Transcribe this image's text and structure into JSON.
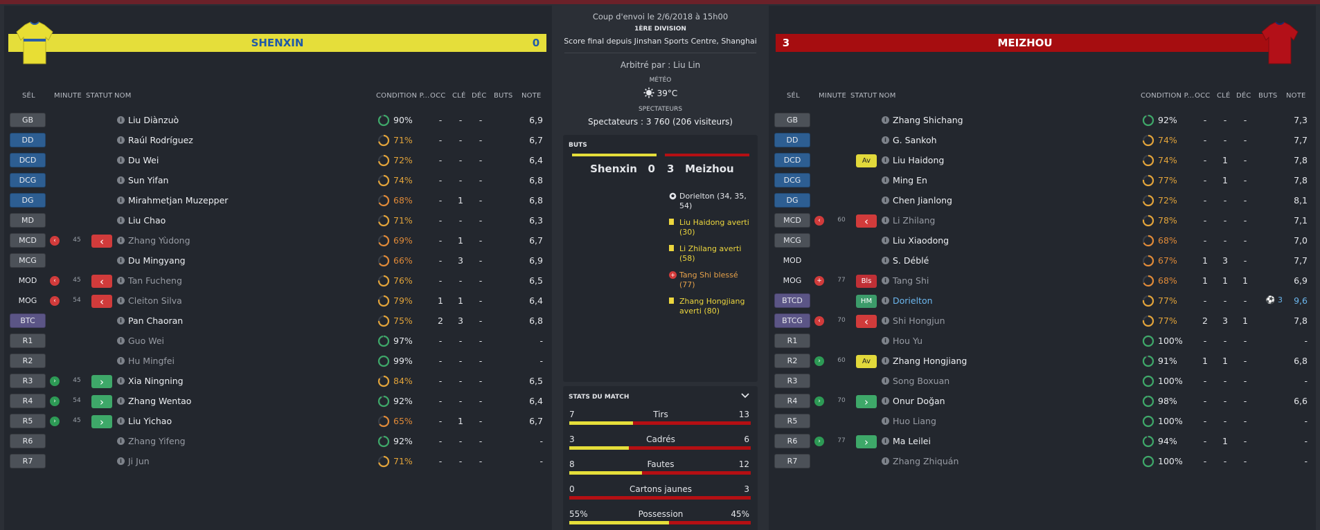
{
  "home": {
    "name": "SHENXIN",
    "score": "0",
    "shirt_colors": {
      "body": "#e8de34",
      "stripe": "#2a5ea8"
    },
    "headers": {
      "sel": "SÉL",
      "minute": "MINUTE",
      "statut": "STATUT",
      "nom": "NOM",
      "condition": "CONDITION P...",
      "occ": "OCC",
      "cle": "CLÉ",
      "dec": "DÉC",
      "buts": "BUTS",
      "note": "NOTE"
    },
    "players": [
      {
        "pos": "GB",
        "pos_style": "gk",
        "sub": "",
        "minute": "",
        "statut": "",
        "name": "Liu Diànzuò",
        "name_style": "",
        "cond": "90%",
        "cond_level": 0.9,
        "occ": "-",
        "cle": "-",
        "dec": "-",
        "buts": "",
        "note": "6,9"
      },
      {
        "pos": "DD",
        "pos_style": "def",
        "sub": "",
        "minute": "",
        "statut": "",
        "name": "Raúl Rodríguez",
        "name_style": "",
        "cond": "71%",
        "cond_level": 0.71,
        "occ": "-",
        "cle": "-",
        "dec": "-",
        "buts": "",
        "note": "6,7"
      },
      {
        "pos": "DCD",
        "pos_style": "def",
        "sub": "",
        "minute": "",
        "statut": "",
        "name": "Du Wei",
        "name_style": "",
        "cond": "72%",
        "cond_level": 0.72,
        "occ": "-",
        "cle": "-",
        "dec": "-",
        "buts": "",
        "note": "6,4"
      },
      {
        "pos": "DCG",
        "pos_style": "def",
        "sub": "",
        "minute": "",
        "statut": "",
        "name": "Sun Yifan",
        "name_style": "",
        "cond": "74%",
        "cond_level": 0.74,
        "occ": "-",
        "cle": "-",
        "dec": "-",
        "buts": "",
        "note": "6,8"
      },
      {
        "pos": "DG",
        "pos_style": "def",
        "sub": "",
        "minute": "",
        "statut": "",
        "name": "Mirahmetjan Muzepper",
        "name_style": "",
        "cond": "68%",
        "cond_level": 0.68,
        "occ": "-",
        "cle": "1",
        "dec": "-",
        "buts": "",
        "note": "6,8"
      },
      {
        "pos": "MD",
        "pos_style": "mid",
        "sub": "",
        "minute": "",
        "statut": "",
        "name": "Liu Chao",
        "name_style": "",
        "cond": "71%",
        "cond_level": 0.71,
        "occ": "-",
        "cle": "-",
        "dec": "-",
        "buts": "",
        "note": "6,3"
      },
      {
        "pos": "MCD",
        "pos_style": "mid",
        "sub": "out",
        "minute": "45",
        "statut": "out",
        "name": "Zhang Yùdong",
        "name_style": "dim",
        "cond": "69%",
        "cond_level": 0.69,
        "occ": "-",
        "cle": "1",
        "dec": "-",
        "buts": "",
        "note": "6,7"
      },
      {
        "pos": "MCG",
        "pos_style": "mid",
        "sub": "",
        "minute": "",
        "statut": "",
        "name": "Du Mingyang",
        "name_style": "",
        "cond": "66%",
        "cond_level": 0.66,
        "occ": "-",
        "cle": "3",
        "dec": "-",
        "buts": "",
        "note": "6,9"
      },
      {
        "pos": "MOD",
        "pos_style": "plain",
        "sub": "out",
        "minute": "45",
        "statut": "out",
        "name": "Tan Fucheng",
        "name_style": "dim",
        "cond": "76%",
        "cond_level": 0.76,
        "occ": "-",
        "cle": "-",
        "dec": "-",
        "buts": "",
        "note": "6,5"
      },
      {
        "pos": "MOG",
        "pos_style": "plain",
        "sub": "out",
        "minute": "54",
        "statut": "out",
        "name": "Cleiton Silva",
        "name_style": "dim",
        "cond": "79%",
        "cond_level": 0.79,
        "occ": "1",
        "cle": "1",
        "dec": "-",
        "buts": "",
        "note": "6,4"
      },
      {
        "pos": "BTC",
        "pos_style": "att",
        "sub": "",
        "minute": "",
        "statut": "",
        "name": "Pan Chaoran",
        "name_style": "",
        "cond": "75%",
        "cond_level": 0.75,
        "occ": "2",
        "cle": "3",
        "dec": "-",
        "buts": "",
        "note": "6,8"
      },
      {
        "pos": "R1",
        "pos_style": "res",
        "sub": "",
        "minute": "",
        "statut": "",
        "name": "Guo Wei",
        "name_style": "dim",
        "cond": "97%",
        "cond_level": 0.97,
        "occ": "-",
        "cle": "-",
        "dec": "-",
        "buts": "",
        "note": "-"
      },
      {
        "pos": "R2",
        "pos_style": "res",
        "sub": "",
        "minute": "",
        "statut": "",
        "name": "Hu Mingfei",
        "name_style": "dim",
        "cond": "99%",
        "cond_level": 0.99,
        "occ": "-",
        "cle": "-",
        "dec": "-",
        "buts": "",
        "note": "-"
      },
      {
        "pos": "R3",
        "pos_style": "res",
        "sub": "in",
        "minute": "45",
        "statut": "in",
        "name": "Xia Ningning",
        "name_style": "",
        "cond": "84%",
        "cond_level": 0.84,
        "occ": "-",
        "cle": "-",
        "dec": "-",
        "buts": "",
        "note": "6,5"
      },
      {
        "pos": "R4",
        "pos_style": "res",
        "sub": "in",
        "minute": "54",
        "statut": "in",
        "name": "Zhang Wentao",
        "name_style": "",
        "cond": "92%",
        "cond_level": 0.92,
        "occ": "-",
        "cle": "-",
        "dec": "-",
        "buts": "",
        "note": "6,4"
      },
      {
        "pos": "R5",
        "pos_style": "res",
        "sub": "in",
        "minute": "45",
        "statut": "in",
        "name": "Liu Yichao",
        "name_style": "",
        "cond": "65%",
        "cond_level": 0.65,
        "occ": "-",
        "cle": "1",
        "dec": "-",
        "buts": "",
        "note": "6,7"
      },
      {
        "pos": "R6",
        "pos_style": "res",
        "sub": "",
        "minute": "",
        "statut": "",
        "name": "Zhang Yifeng",
        "name_style": "dim",
        "cond": "92%",
        "cond_level": 0.92,
        "occ": "-",
        "cle": "-",
        "dec": "-",
        "buts": "",
        "note": "-"
      },
      {
        "pos": "R7",
        "pos_style": "res",
        "sub": "",
        "minute": "",
        "statut": "",
        "name": "Ji Jun",
        "name_style": "dim",
        "cond": "71%",
        "cond_level": 0.71,
        "occ": "-",
        "cle": "-",
        "dec": "-",
        "buts": "",
        "note": "-"
      }
    ]
  },
  "away": {
    "name": "MEIZHOU",
    "score": "3",
    "shirt_colors": {
      "body": "#b31018",
      "stripe": "#1c2a6a"
    },
    "headers": {
      "sel": "SÉL",
      "minute": "MINUTE",
      "statut": "STATUT",
      "nom": "NOM",
      "condition": "CONDITION P...",
      "occ": "OCC",
      "cle": "CLÉ",
      "dec": "DÉC",
      "buts": "BUTS",
      "note": "NOTE"
    },
    "players": [
      {
        "pos": "GB",
        "pos_style": "gk",
        "sub": "",
        "minute": "",
        "statut": "",
        "name": "Zhang Shichang",
        "name_style": "",
        "cond": "92%",
        "cond_level": 0.92,
        "occ": "-",
        "cle": "-",
        "dec": "-",
        "buts": "",
        "note": "7,3"
      },
      {
        "pos": "DD",
        "pos_style": "def",
        "sub": "",
        "minute": "",
        "statut": "",
        "name": "G. Sankoh",
        "name_style": "",
        "cond": "74%",
        "cond_level": 0.74,
        "occ": "-",
        "cle": "-",
        "dec": "-",
        "buts": "",
        "note": "7,7"
      },
      {
        "pos": "DCD",
        "pos_style": "def",
        "sub": "",
        "minute": "",
        "statut": "Av",
        "name": "Liu Haidong",
        "name_style": "",
        "cond": "74%",
        "cond_level": 0.74,
        "occ": "-",
        "cle": "1",
        "dec": "-",
        "buts": "",
        "note": "7,8"
      },
      {
        "pos": "DCG",
        "pos_style": "def",
        "sub": "",
        "minute": "",
        "statut": "",
        "name": "Ming En",
        "name_style": "",
        "cond": "77%",
        "cond_level": 0.77,
        "occ": "-",
        "cle": "1",
        "dec": "-",
        "buts": "",
        "note": "7,8"
      },
      {
        "pos": "DG",
        "pos_style": "def",
        "sub": "",
        "minute": "",
        "statut": "",
        "name": "Chen Jianlong",
        "name_style": "",
        "cond": "72%",
        "cond_level": 0.72,
        "occ": "-",
        "cle": "-",
        "dec": "-",
        "buts": "",
        "note": "8,1"
      },
      {
        "pos": "MCD",
        "pos_style": "mid",
        "sub": "out",
        "minute": "60",
        "statut": "out",
        "name": "Li Zhilang",
        "name_style": "dim",
        "cond": "78%",
        "cond_level": 0.78,
        "occ": "-",
        "cle": "-",
        "dec": "-",
        "buts": "",
        "note": "7,1"
      },
      {
        "pos": "MCG",
        "pos_style": "mid",
        "sub": "",
        "minute": "",
        "statut": "",
        "name": "Liu Xiaodong",
        "name_style": "",
        "cond": "68%",
        "cond_level": 0.68,
        "occ": "-",
        "cle": "-",
        "dec": "-",
        "buts": "",
        "note": "7,0"
      },
      {
        "pos": "MOD",
        "pos_style": "plain",
        "sub": "",
        "minute": "",
        "statut": "",
        "name": "S. Déblé",
        "name_style": "",
        "cond": "67%",
        "cond_level": 0.67,
        "occ": "1",
        "cle": "3",
        "dec": "-",
        "buts": "",
        "note": "7,7"
      },
      {
        "pos": "MOG",
        "pos_style": "plain",
        "sub": "inj",
        "minute": "77",
        "statut": "Bls",
        "name": "Tang Shi",
        "name_style": "dim",
        "cond": "68%",
        "cond_level": 0.68,
        "occ": "1",
        "cle": "1",
        "dec": "1",
        "buts": "",
        "note": "6,9"
      },
      {
        "pos": "BTCD",
        "pos_style": "att",
        "sub": "",
        "minute": "",
        "statut": "HM",
        "name": "Dorielton",
        "name_style": "link",
        "cond": "77%",
        "cond_level": 0.77,
        "occ": "-",
        "cle": "-",
        "dec": "-",
        "buts": "⚽ 3",
        "note": "9,6"
      },
      {
        "pos": "BTCG",
        "pos_style": "att",
        "sub": "out",
        "minute": "70",
        "statut": "out",
        "name": "Shi Hongjun",
        "name_style": "dim",
        "cond": "77%",
        "cond_level": 0.77,
        "occ": "2",
        "cle": "3",
        "dec": "1",
        "buts": "",
        "note": "7,8"
      },
      {
        "pos": "R1",
        "pos_style": "res",
        "sub": "",
        "minute": "",
        "statut": "",
        "name": "Hou Yu",
        "name_style": "dim",
        "cond": "100%",
        "cond_level": 1.0,
        "occ": "-",
        "cle": "-",
        "dec": "-",
        "buts": "",
        "note": "-"
      },
      {
        "pos": "R2",
        "pos_style": "res",
        "sub": "in",
        "minute": "60",
        "statut": "Av",
        "name": "Zhang Hongjiang",
        "name_style": "",
        "cond": "91%",
        "cond_level": 0.91,
        "occ": "1",
        "cle": "1",
        "dec": "-",
        "buts": "",
        "note": "6,8"
      },
      {
        "pos": "R3",
        "pos_style": "res",
        "sub": "",
        "minute": "",
        "statut": "",
        "name": "Song Boxuan",
        "name_style": "dim",
        "cond": "100%",
        "cond_level": 1.0,
        "occ": "-",
        "cle": "-",
        "dec": "-",
        "buts": "",
        "note": "-"
      },
      {
        "pos": "R4",
        "pos_style": "res",
        "sub": "in",
        "minute": "70",
        "statut": "in",
        "name": "Onur Doğan",
        "name_style": "",
        "cond": "98%",
        "cond_level": 0.98,
        "occ": "-",
        "cle": "-",
        "dec": "-",
        "buts": "",
        "note": "6,6"
      },
      {
        "pos": "R5",
        "pos_style": "res",
        "sub": "",
        "minute": "",
        "statut": "",
        "name": "Huo Liang",
        "name_style": "dim",
        "cond": "100%",
        "cond_level": 1.0,
        "occ": "-",
        "cle": "-",
        "dec": "-",
        "buts": "",
        "note": "-"
      },
      {
        "pos": "R6",
        "pos_style": "res",
        "sub": "in",
        "minute": "77",
        "statut": "in",
        "name": "Ma Leilei",
        "name_style": "",
        "cond": "94%",
        "cond_level": 0.94,
        "occ": "-",
        "cle": "1",
        "dec": "-",
        "buts": "",
        "note": "-"
      },
      {
        "pos": "R7",
        "pos_style": "res",
        "sub": "",
        "minute": "",
        "statut": "",
        "name": "Zhang Zhiquán",
        "name_style": "dim",
        "cond": "100%",
        "cond_level": 1.0,
        "occ": "-",
        "cle": "-",
        "dec": "-",
        "buts": "",
        "note": "-"
      }
    ]
  },
  "match": {
    "kickoff": "Coup d'envoi le 2/6/2018 à 15h00",
    "division": "1ÈRE DIVISION",
    "final_score": "Score final depuis Jinshan Sports Centre, Shanghai",
    "referee": "Arbitré par : Liu Lin",
    "meteo_label": "MÉTÉO",
    "temperature": "39°C",
    "spectators_label": "SPECTATEURS",
    "spectators": "Spectateurs : 3 760 (206 visiteurs)"
  },
  "goals": {
    "title": "BUTS",
    "home_line": "Shenxin   0",
    "away_line": "3   Meizhou",
    "events": [
      {
        "type": "goal",
        "text": "Dorielton (34, 35, 54)"
      },
      {
        "type": "yellow",
        "text": "Liu Haidong averti (30)"
      },
      {
        "type": "yellow",
        "text": "Li Zhilang averti (58)"
      },
      {
        "type": "inj",
        "text": "Tang Shi blessé (77)"
      },
      {
        "type": "yellow",
        "text": "Zhang Hongjiang averti (80)"
      }
    ]
  },
  "stats": {
    "title": "STATS DU MATCH",
    "colors": {
      "home": "#e5de3a",
      "away": "#b50f13"
    },
    "rows": [
      {
        "label": "Tirs",
        "home": "7",
        "away": "13",
        "share": 0.35
      },
      {
        "label": "Cadrés",
        "home": "3",
        "away": "6",
        "share": 0.33
      },
      {
        "label": "Fautes",
        "home": "8",
        "away": "12",
        "share": 0.4
      },
      {
        "label": "Cartons jaunes",
        "home": "0",
        "away": "3",
        "share": 0.0
      },
      {
        "label": "Possession",
        "home": "55%",
        "away": "45%",
        "share": 0.55
      }
    ]
  }
}
